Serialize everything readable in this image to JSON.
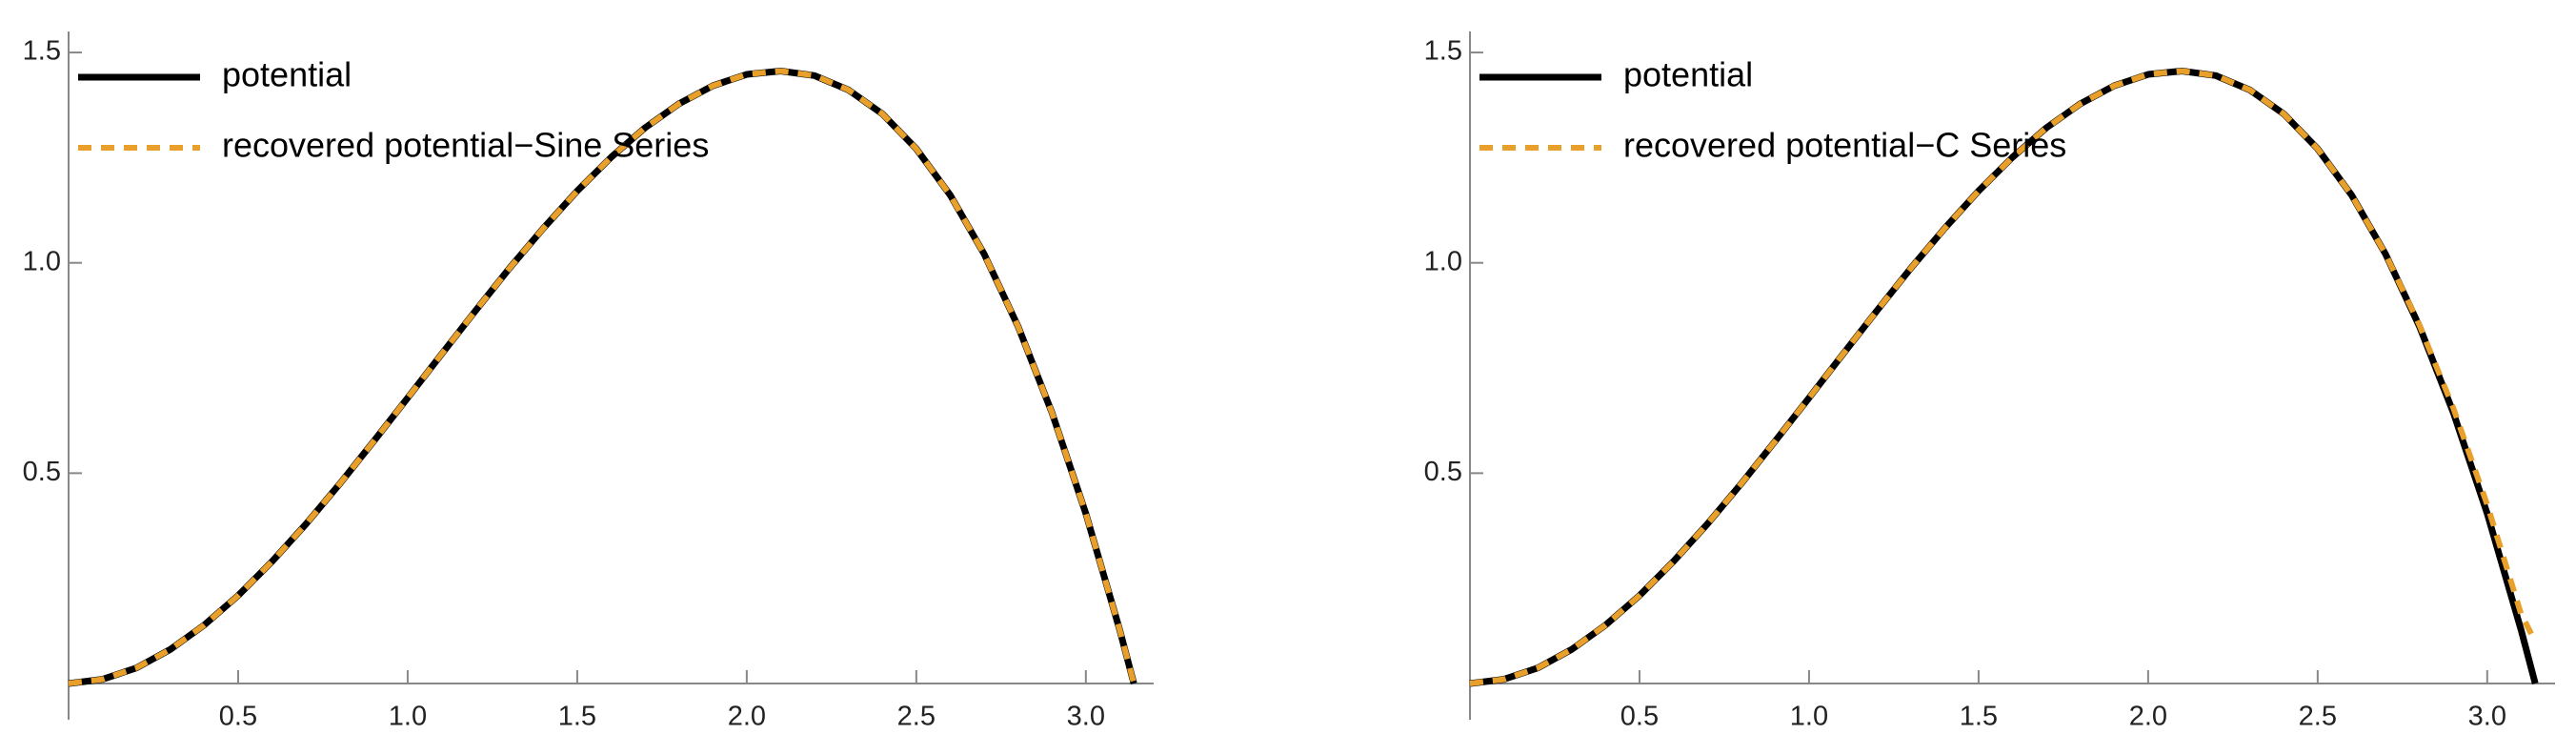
{
  "chart_data": [
    {
      "type": "line",
      "x": [
        0,
        0.1,
        0.2,
        0.3,
        0.4,
        0.5,
        0.6,
        0.7,
        0.8,
        0.9,
        1.0,
        1.1,
        1.2,
        1.3,
        1.4,
        1.5,
        1.6,
        1.7,
        1.8,
        1.9,
        2.0,
        2.1,
        2.2,
        2.3,
        2.4,
        2.5,
        2.6,
        2.7,
        2.8,
        2.9,
        3.0,
        3.1,
        3.1416
      ],
      "series": [
        {
          "name": "potential",
          "color": "#000000",
          "dashed": false,
          "values": [
            0,
            0.01,
            0.037,
            0.081,
            0.139,
            0.209,
            0.29,
            0.379,
            0.475,
            0.576,
            0.679,
            0.783,
            0.886,
            0.987,
            1.082,
            1.171,
            1.251,
            1.321,
            1.378,
            1.421,
            1.448,
            1.456,
            1.445,
            1.411,
            1.354,
            1.271,
            1.161,
            1.021,
            0.849,
            0.644,
            0.404,
            0.127,
            0
          ]
        },
        {
          "name": "recovered potential−Sine Series",
          "color": "#e8a02a",
          "dashed": true,
          "values": [
            0,
            0.01,
            0.037,
            0.081,
            0.139,
            0.209,
            0.29,
            0.379,
            0.475,
            0.576,
            0.679,
            0.783,
            0.886,
            0.987,
            1.082,
            1.171,
            1.251,
            1.321,
            1.378,
            1.421,
            1.448,
            1.456,
            1.445,
            1.411,
            1.354,
            1.271,
            1.161,
            1.021,
            0.849,
            0.644,
            0.404,
            0.127,
            0
          ]
        }
      ],
      "xlim": [
        0,
        3.2
      ],
      "ylim": [
        0,
        1.55
      ],
      "xticks": [
        0.5,
        {
          "value": 1,
          "label": "1.0"
        },
        1.5,
        {
          "value": 2,
          "label": "2.0"
        },
        2.5,
        {
          "value": 3,
          "label": "3.0"
        }
      ],
      "yticks": [
        0.5,
        {
          "value": 1,
          "label": "1.0"
        },
        1.5
      ],
      "grid": false,
      "legend": "upper left"
    },
    {
      "type": "line",
      "x": [
        0,
        0.1,
        0.2,
        0.3,
        0.4,
        0.5,
        0.6,
        0.7,
        0.8,
        0.9,
        1.0,
        1.1,
        1.2,
        1.3,
        1.4,
        1.5,
        1.6,
        1.7,
        1.8,
        1.9,
        2.0,
        2.1,
        2.2,
        2.3,
        2.4,
        2.5,
        2.6,
        2.7,
        2.8,
        2.9,
        3.0,
        3.1,
        3.1416
      ],
      "series": [
        {
          "name": "potential",
          "color": "#000000",
          "dashed": false,
          "values": [
            0,
            0.01,
            0.037,
            0.081,
            0.139,
            0.209,
            0.29,
            0.379,
            0.475,
            0.576,
            0.679,
            0.783,
            0.886,
            0.987,
            1.082,
            1.171,
            1.251,
            1.321,
            1.378,
            1.421,
            1.448,
            1.456,
            1.445,
            1.411,
            1.354,
            1.271,
            1.161,
            1.021,
            0.849,
            0.644,
            0.404,
            0.127,
            0
          ]
        },
        {
          "name": "recovered potential−C Series",
          "color": "#e8a02a",
          "dashed": true,
          "values": [
            0,
            0.01,
            0.037,
            0.081,
            0.139,
            0.209,
            0.29,
            0.379,
            0.475,
            0.576,
            0.679,
            0.783,
            0.886,
            0.987,
            1.082,
            1.171,
            1.251,
            1.321,
            1.378,
            1.421,
            1.448,
            1.456,
            1.445,
            1.411,
            1.354,
            1.271,
            1.161,
            1.021,
            0.852,
            0.655,
            0.425,
            0.165,
            0.1
          ]
        }
      ],
      "xlim": [
        0,
        3.2
      ],
      "ylim": [
        0,
        1.55
      ],
      "xticks": [
        0.5,
        {
          "value": 1,
          "label": "1.0"
        },
        1.5,
        {
          "value": 2,
          "label": "2.0"
        },
        2.5,
        {
          "value": 3,
          "label": "3.0"
        }
      ],
      "yticks": [
        0.5,
        {
          "value": 1,
          "label": "1.0"
        },
        1.5
      ],
      "grid": false,
      "legend": "upper left"
    }
  ]
}
